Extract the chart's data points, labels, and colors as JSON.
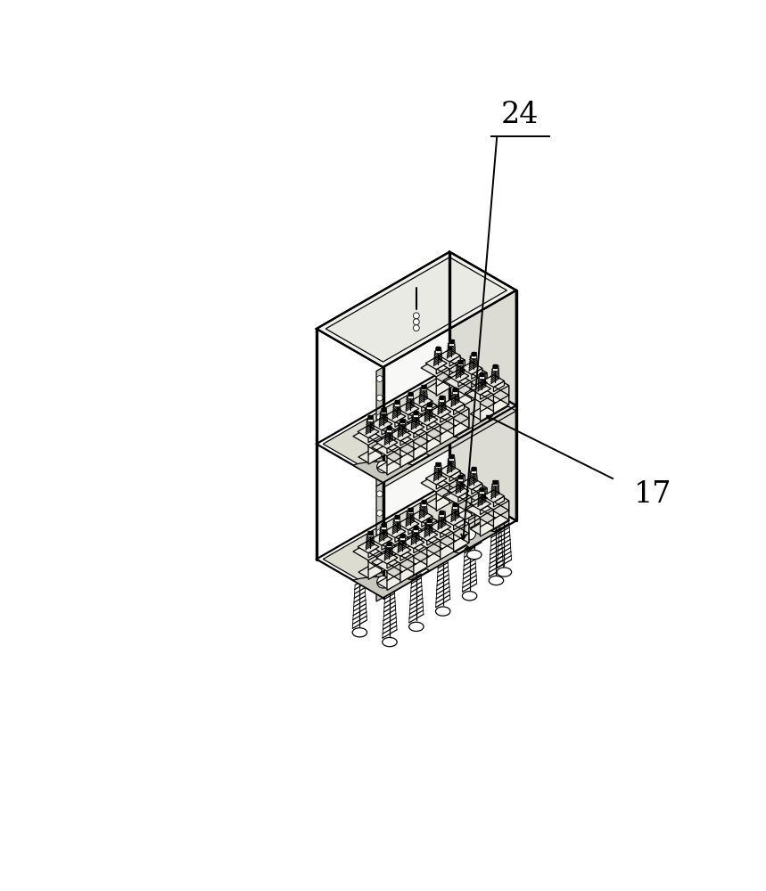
{
  "background_color": "#ffffff",
  "line_color": "#000000",
  "label_17": "17",
  "label_24": "24",
  "figsize": [
    8.59,
    10.0
  ],
  "dpi": 100,
  "fc_light": "#f0f0ec",
  "fc_panel": "#e8e8e2",
  "fc_mid": "#d8d8d0",
  "fc_floor": "#dcdcd0",
  "fc_cap_front": "#f0f0e8",
  "fc_cap_side": "#d8d8d0",
  "fc_cap_top": "#e8e8e0",
  "fc_brace": "#c8c8be",
  "lw_main": 1.6,
  "lw_thin": 0.9,
  "lw_thick": 2.4
}
